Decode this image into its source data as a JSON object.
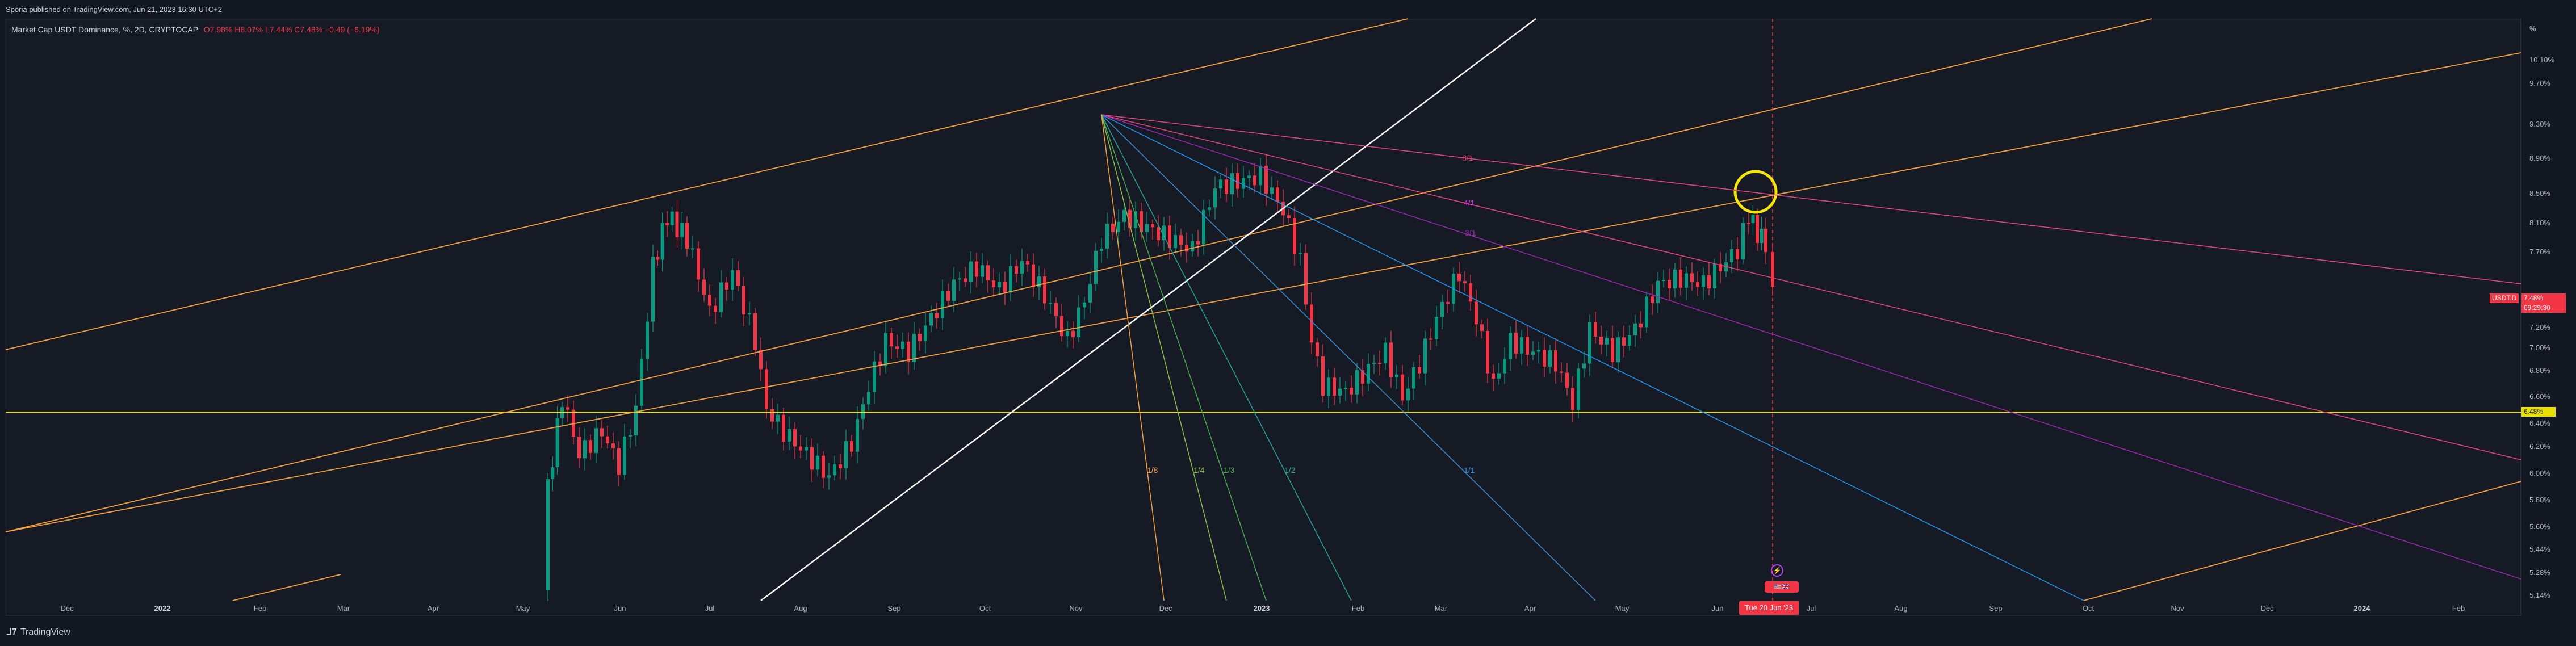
{
  "header": {
    "published": "Sporia published on TradingView.com, Jun 21, 2023 16:30 UTC+2"
  },
  "legend": {
    "symbol": "Market Cap USDT Dominance, %, 2D, CRYPTOCAP",
    "ohlc": "O7.98% H8.07% L7.44% C7.48% −0.49 (−6.19%)"
  },
  "price_scale": {
    "unit": "%",
    "ticks": [
      "10.10%",
      "9.70%",
      "9.30%",
      "8.90%",
      "8.50%",
      "8.10%",
      "7.70%",
      "7.20%",
      "7.00%",
      "6.80%",
      "6.60%",
      "6.40%",
      "6.20%",
      "6.00%",
      "5.80%",
      "5.60%",
      "5.44%",
      "5.28%",
      "5.14%"
    ],
    "current_label": "USDT.D",
    "current_value": "7.48%",
    "countdown": "09:29:30",
    "level_label": "6.48%"
  },
  "time_axis": {
    "ticks": [
      {
        "label": "Dec",
        "bold": false
      },
      {
        "label": "2022",
        "bold": true
      },
      {
        "label": "Feb",
        "bold": false
      },
      {
        "label": "Mar",
        "bold": false
      },
      {
        "label": "Apr",
        "bold": false
      },
      {
        "label": "May",
        "bold": false
      },
      {
        "label": "Jun",
        "bold": false
      },
      {
        "label": "Jul",
        "bold": false
      },
      {
        "label": "Aug",
        "bold": false
      },
      {
        "label": "Sep",
        "bold": false
      },
      {
        "label": "Oct",
        "bold": false
      },
      {
        "label": "Nov",
        "bold": false
      },
      {
        "label": "Dec",
        "bold": false
      },
      {
        "label": "2023",
        "bold": true
      },
      {
        "label": "Feb",
        "bold": false
      },
      {
        "label": "Mar",
        "bold": false
      },
      {
        "label": "Apr",
        "bold": false
      },
      {
        "label": "May",
        "bold": false
      },
      {
        "label": "Jun",
        "bold": false
      },
      {
        "label": "Jul",
        "bold": false
      },
      {
        "label": "Aug",
        "bold": false
      },
      {
        "label": "Sep",
        "bold": false
      },
      {
        "label": "Oct",
        "bold": false
      },
      {
        "label": "Nov",
        "bold": false
      },
      {
        "label": "Dec",
        "bold": false
      },
      {
        "label": "2024",
        "bold": true
      },
      {
        "label": "Feb",
        "bold": false
      }
    ],
    "cursor_date": "Tue 20 Jun '23"
  },
  "fan_labels": [
    "8/1",
    "4/1",
    "3/1",
    "1/8",
    "1/4",
    "1/3",
    "1/2",
    "1/1"
  ],
  "colors": {
    "background": "#161a25",
    "bull": "#089981",
    "bear": "#f23645",
    "channel": "#f7a23c",
    "white_line": "#ffffff",
    "support": "#e8e000",
    "fan_pink": "#e9467a",
    "fan_violet": "#9c27b0",
    "fan_blue": "#2196f3",
    "fan_cyan": "#26a69a",
    "circle": "#f5e50a"
  },
  "footer": {
    "brand": "TradingView"
  },
  "events": {
    "flags": "🇺🇸🇬🇧"
  }
}
